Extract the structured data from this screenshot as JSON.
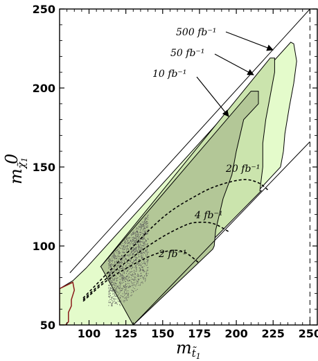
{
  "chart_data": {
    "type": "area",
    "x_range": [
      80,
      255
    ],
    "y_range": [
      50,
      250
    ],
    "x_ticks": [
      100,
      125,
      150,
      175,
      200,
      225,
      250
    ],
    "y_ticks": [
      50,
      100,
      150,
      200,
      250
    ],
    "x_tick_labels": [
      "100",
      "125",
      "150",
      "175",
      "200",
      "225",
      "250"
    ],
    "y_tick_labels": [
      "50",
      "100",
      "150",
      "200",
      "250"
    ],
    "xlabel": "m",
    "xlabel_sub": "t̃",
    "xlabel_subsub": "1",
    "ylabel": "m",
    "ylabel_sub": "χ̃",
    "ylabel_sup": "0",
    "ylabel_subsub": "1",
    "colors": {
      "region_light": "#e4fbcb",
      "region_mid": "#cbe4ad",
      "region_dark": "#b3c797",
      "excluded_edge": "#8b1a1a",
      "scatter": "#5a5a5a"
    },
    "boundaries": {
      "kinematic_upper": [
        [
          87,
          83
        ],
        [
          250,
          250
        ]
      ],
      "kinematic_lower": [
        [
          130,
          50
        ],
        [
          250,
          166
        ]
      ],
      "vertical_limit": 250
    },
    "region_light": [
      [
        80,
        73
      ],
      [
        89,
        78
      ],
      [
        98,
        86
      ],
      [
        237,
        229
      ],
      [
        239,
        228
      ],
      [
        241,
        217
      ],
      [
        239,
        203
      ],
      [
        236,
        188
      ],
      [
        233,
        171
      ],
      [
        232,
        160
      ],
      [
        230,
        150
      ],
      [
        130,
        50
      ],
      [
        80,
        50
      ]
    ],
    "region_mid": [
      [
        108,
        87
      ],
      [
        223,
        219
      ],
      [
        226,
        219
      ],
      [
        226,
        210
      ],
      [
        223,
        195
      ],
      [
        220,
        180
      ],
      [
        218,
        165
      ],
      [
        218,
        150
      ],
      [
        216,
        135
      ],
      [
        217,
        135
      ],
      [
        180,
        100
      ],
      [
        180,
        100
      ]
    ],
    "region_dark": [
      [
        108,
        87
      ],
      [
        210,
        198
      ],
      [
        215,
        198
      ],
      [
        215,
        190
      ],
      [
        205,
        180
      ],
      [
        200,
        160
      ],
      [
        197,
        145
      ],
      [
        191,
        130
      ],
      [
        186,
        110
      ],
      [
        185,
        100
      ],
      [
        184,
        98
      ],
      [
        130,
        50
      ],
      [
        108,
        87
      ]
    ],
    "excluded_region": [
      [
        80,
        73
      ],
      [
        89,
        77
      ],
      [
        90,
        72
      ],
      [
        88,
        66
      ],
      [
        88,
        62
      ],
      [
        86,
        58
      ],
      [
        86,
        52
      ],
      [
        84,
        50
      ],
      [
        80,
        50
      ]
    ],
    "contours_dashed": [
      {
        "label": "20 fb⁻¹",
        "points": [
          [
            96,
            67
          ],
          [
            120,
            90
          ],
          [
            150,
            118
          ],
          [
            175,
            133
          ],
          [
            190,
            139
          ],
          [
            205,
            142
          ],
          [
            215,
            140
          ],
          [
            222,
            135
          ]
        ]
      },
      {
        "label": "4 fb⁻¹",
        "points": [
          [
            96,
            66
          ],
          [
            120,
            86
          ],
          [
            145,
            103
          ],
          [
            165,
            113
          ],
          [
            175,
            115
          ],
          [
            185,
            114
          ],
          [
            195,
            109
          ]
        ]
      },
      {
        "label": "2 fb⁻¹",
        "points": [
          [
            96,
            65
          ],
          [
            115,
            80
          ],
          [
            140,
            93
          ],
          [
            155,
            97
          ],
          [
            165,
            96
          ],
          [
            175,
            89
          ]
        ]
      }
    ],
    "luminosity_labels": [
      "500 fb⁻¹",
      "50 fb⁻¹",
      "10 fb⁻¹",
      "20 fb⁻¹",
      "4 fb⁻¹",
      "2 fb⁻¹"
    ],
    "scatter_region": {
      "x": [
        113,
        140
      ],
      "y": [
        70,
        120
      ]
    }
  }
}
